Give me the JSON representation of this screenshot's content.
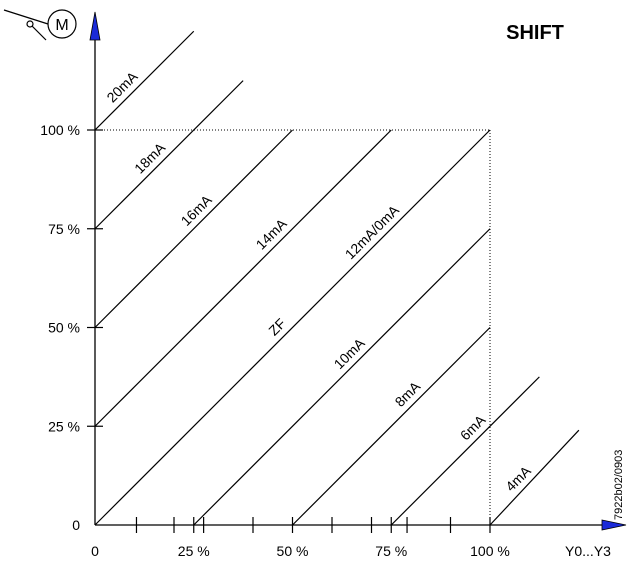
{
  "title": "SHIFT",
  "motor_symbol": {
    "letter": "M",
    "icon": "motor-icon"
  },
  "drawing_code": "7922b02/0903",
  "x_axis": {
    "label": "Y0...Y3",
    "tick_labels": [
      "0",
      "25 %",
      "50 %",
      "75 %",
      "100 %"
    ],
    "major_ticks": [
      0,
      25,
      50,
      75,
      100
    ],
    "minor_ticks": [
      10.5,
      20,
      27.5,
      40,
      60,
      70,
      79,
      90
    ]
  },
  "y_axis": {
    "tick_labels": [
      "0",
      "25 %",
      "50 %",
      "75 %",
      "100 %"
    ],
    "ticks": [
      0,
      25,
      50,
      75,
      100
    ]
  },
  "reference_lines": {
    "x": 100,
    "y": 100,
    "style": "dotted"
  },
  "chart_data": {
    "type": "line",
    "xlim": [
      0,
      100
    ],
    "ylim": [
      0,
      100
    ],
    "series": [
      {
        "name": "20mA",
        "x": [
          0,
          25
        ],
        "y": [
          100,
          125
        ]
      },
      {
        "name": "18mA",
        "x": [
          0,
          37.5
        ],
        "y": [
          75,
          112.5
        ]
      },
      {
        "name": "16mA",
        "x": [
          0,
          50
        ],
        "y": [
          50,
          100
        ]
      },
      {
        "name": "14mA",
        "x": [
          0,
          75
        ],
        "y": [
          25,
          100
        ]
      },
      {
        "name": "12mA/0mA",
        "x": [
          0,
          100
        ],
        "y": [
          0,
          100
        ]
      },
      {
        "name": "10mA",
        "x": [
          25,
          100
        ],
        "y": [
          0,
          75
        ]
      },
      {
        "name": "8mA",
        "x": [
          50,
          100
        ],
        "y": [
          0,
          50
        ]
      },
      {
        "name": "6mA",
        "x": [
          75,
          112.5
        ],
        "y": [
          0,
          37.5
        ]
      },
      {
        "name": "4mA",
        "x": [
          100,
          122.5
        ],
        "y": [
          0,
          24
        ]
      }
    ],
    "annotations": [
      "ZF"
    ]
  }
}
